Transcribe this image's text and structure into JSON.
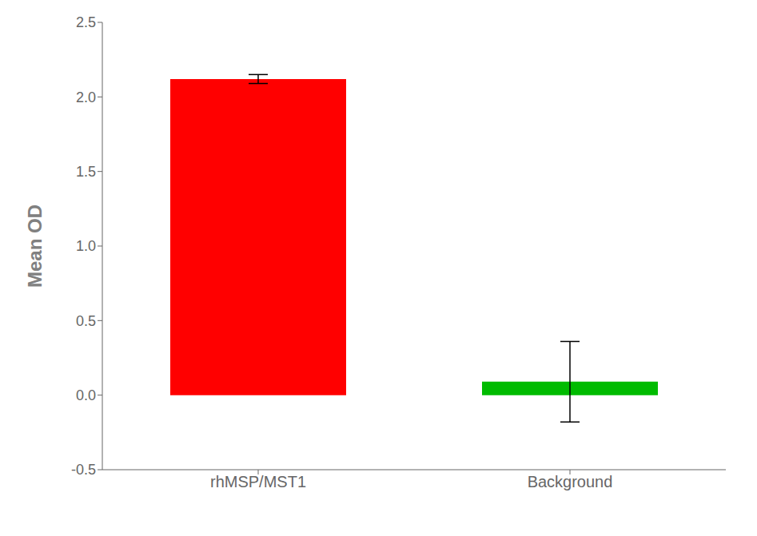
{
  "chart_data": {
    "type": "bar",
    "categories": [
      "rhMSP/MST1",
      "Background"
    ],
    "values": [
      2.12,
      0.09
    ],
    "errors": [
      0.03,
      0.27
    ],
    "colors": [
      "#ff0000",
      "#00bb00"
    ],
    "ylabel": "Mean OD",
    "ylim": [
      -0.5,
      2.5
    ],
    "yticks": [
      -0.5,
      {
        "value": 0,
        "label": "0.0"
      },
      0.5,
      {
        "value": 1,
        "label": "1.0"
      },
      1.5,
      {
        "value": 2,
        "label": "2.0"
      },
      2.5
    ],
    "grid": false
  }
}
